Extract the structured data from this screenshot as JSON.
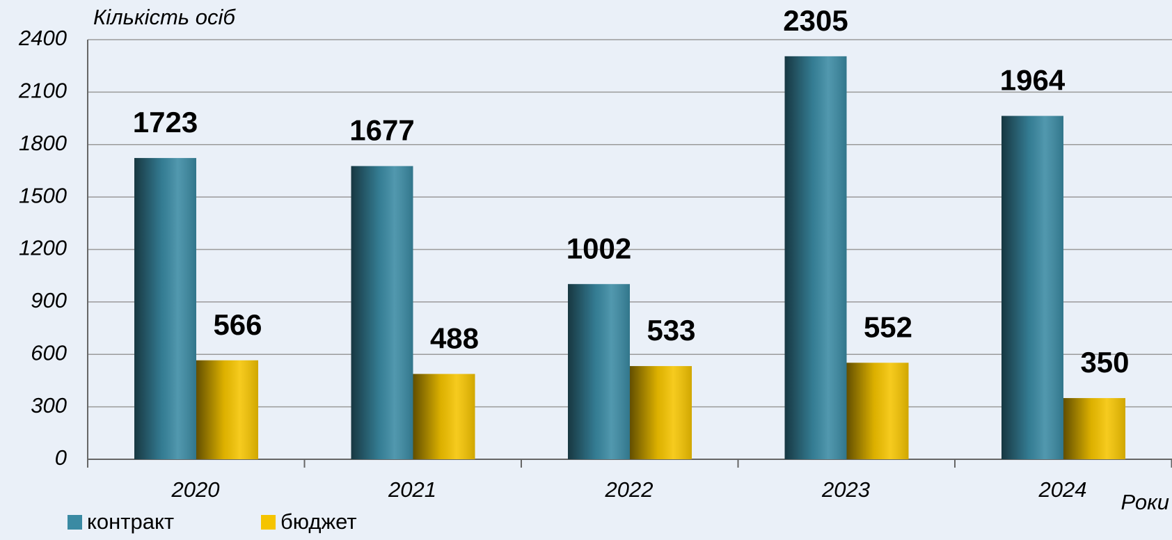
{
  "chart_data": {
    "type": "bar",
    "y_label": "Кількість осіб",
    "x_label": "Роки",
    "categories": [
      "2020",
      "2021",
      "2022",
      "2023",
      "2024"
    ],
    "series": [
      {
        "name": "контракт",
        "color": "#3a8aa3",
        "values": [
          1723,
          1677,
          1002,
          2305,
          1964
        ]
      },
      {
        "name": "бюджет",
        "color": "#f5c400",
        "values": [
          566,
          488,
          533,
          552,
          350
        ]
      }
    ],
    "ylim": [
      0,
      2400
    ],
    "yticks": [
      0,
      300,
      600,
      900,
      1200,
      1500,
      1800,
      2100,
      2400
    ],
    "grid": true
  }
}
